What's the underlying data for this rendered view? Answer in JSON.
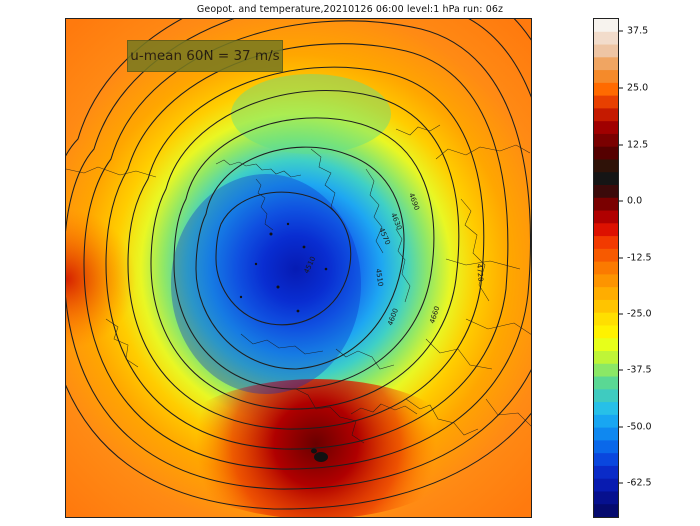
{
  "title": "Geopot. and temperature,20210126 06:00 level:1 hPa run: 06z",
  "annotation": "u-mean 60N = 37 m/s",
  "colorbar": {
    "ticks": [
      "37.5",
      "25.0",
      "12.5",
      "0.0",
      "-12.5",
      "-25.0",
      "-37.5",
      "-50.0",
      "-62.5"
    ],
    "colors_top_to_bottom": [
      "#f7f3ee",
      "#f2dccb",
      "#eec5a4",
      "#f0a562",
      "#f58a2a",
      "#ff6a00",
      "#e84000",
      "#c51a00",
      "#a00000",
      "#7a0000",
      "#550000",
      "#2f1208",
      "#151515",
      "#3b0a0a",
      "#7a0000",
      "#b00000",
      "#dd1100",
      "#f23a00",
      "#f75a00",
      "#fb7a00",
      "#fd9400",
      "#ffad00",
      "#ffc400",
      "#ffdf00",
      "#fff200",
      "#e7ff1a",
      "#bff537",
      "#8be866",
      "#5ad894",
      "#3fcbc0",
      "#27c0e8",
      "#18a6f2",
      "#0f88f0",
      "#0a68ea",
      "#0a47de",
      "#0a2bc8",
      "#081bb0",
      "#06108e",
      "#050a6e"
    ]
  },
  "contour_labels": [
    "4690",
    "4630",
    "4570",
    "4510",
    "4600",
    "4660",
    "4720",
    "4510"
  ]
}
